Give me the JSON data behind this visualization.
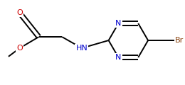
{
  "background_color": "#ffffff",
  "bond_color": "#000000",
  "atom_colors": {
    "O": "#cc0000",
    "N": "#0000cc",
    "Br": "#8b4513",
    "C": "#000000",
    "H": "#000000"
  },
  "figsize": [
    2.6,
    1.2
  ],
  "dpi": 100,
  "lw": 1.4,
  "fs": 8.0
}
